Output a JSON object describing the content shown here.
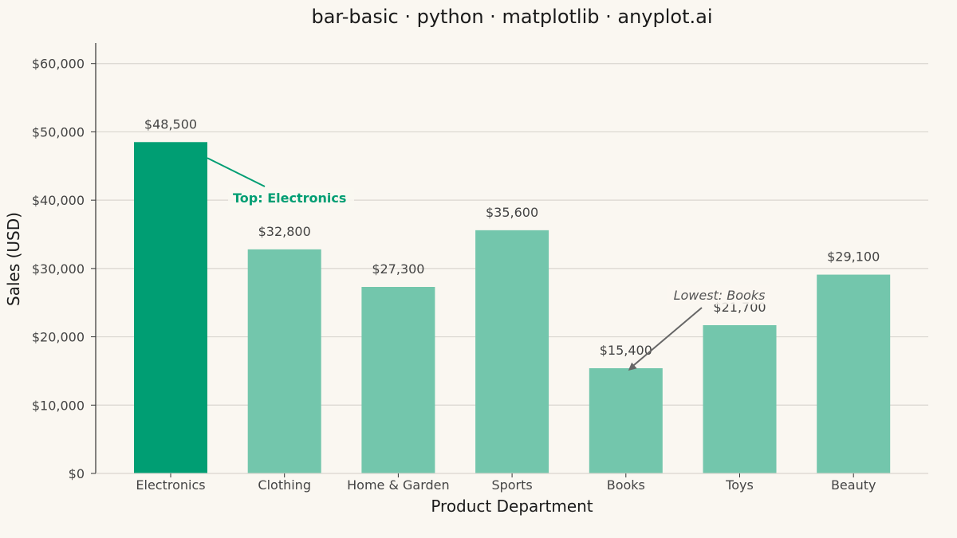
{
  "chart_data": {
    "type": "bar",
    "title": "bar-basic · python · matplotlib · anyplot.ai",
    "xlabel": "Product Department",
    "ylabel": "Sales (USD)",
    "categories": [
      "Electronics",
      "Clothing",
      "Home & Garden",
      "Sports",
      "Books",
      "Toys",
      "Beauty"
    ],
    "values": [
      48500,
      32800,
      27300,
      35600,
      15400,
      21700,
      29100
    ],
    "value_labels": [
      "$48,500",
      "$32,800",
      "$27,300",
      "$35,600",
      "$15,400",
      "$21,700",
      "$29,100"
    ],
    "ylim": [
      0,
      63000
    ],
    "yticks": [
      0,
      10000,
      20000,
      30000,
      40000,
      50000,
      60000
    ],
    "ytick_labels": [
      "$0",
      "$10,000",
      "$20,000",
      "$30,000",
      "$40,000",
      "$50,000",
      "$60,000"
    ],
    "grid": "horizontal",
    "highlight_index": 0,
    "lowest_index": 4,
    "annotations": {
      "top": "Top: Electronics",
      "lowest": "Lowest: Books"
    },
    "colors": {
      "highlight": "#009E73",
      "bar": "#73C6AC",
      "background": "#FAF7F1",
      "grid": "#D9D6D0",
      "axis": "#333333",
      "annotation_arrow": "#666666"
    }
  }
}
